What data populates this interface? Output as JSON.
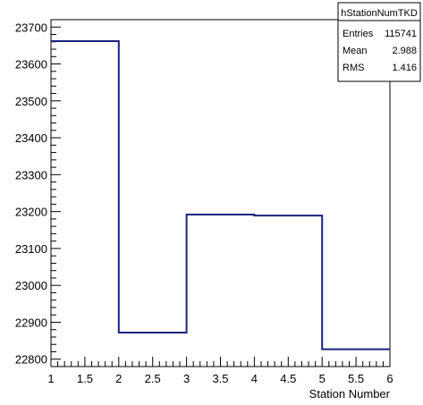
{
  "chart_data": {
    "type": "histogram",
    "title": "",
    "xlabel": "Station Number",
    "ylabel": "",
    "xlim": [
      1,
      6
    ],
    "ylim": [
      22780,
      23720
    ],
    "x_ticks": [
      1,
      1.5,
      2,
      2.5,
      3,
      3.5,
      4,
      4.5,
      5,
      5.5,
      6
    ],
    "x_tick_labels": [
      "1",
      "1.5",
      "2",
      "2.5",
      "3",
      "3.5",
      "4",
      "4.5",
      "5",
      "5.5",
      "6"
    ],
    "y_ticks": [
      22800,
      22900,
      23000,
      23100,
      23200,
      23300,
      23400,
      23500,
      23600,
      23700
    ],
    "y_tick_labels": [
      "22800",
      "22900",
      "23000",
      "23100",
      "23200",
      "23300",
      "23400",
      "23500",
      "23600",
      "23700"
    ],
    "bin_edges": [
      1,
      2,
      3,
      4,
      5,
      6
    ],
    "values": [
      23662,
      22872,
      23192,
      23189,
      22827
    ],
    "line_color": "#1a237e",
    "grid": false,
    "stats_box": {
      "title": "hStationNumTKD",
      "rows": [
        {
          "label": "Entries",
          "value": "115741"
        },
        {
          "label": "Mean",
          "value": "2.988"
        },
        {
          "label": "RMS",
          "value": "1.416"
        }
      ],
      "placement": "top-right"
    }
  }
}
